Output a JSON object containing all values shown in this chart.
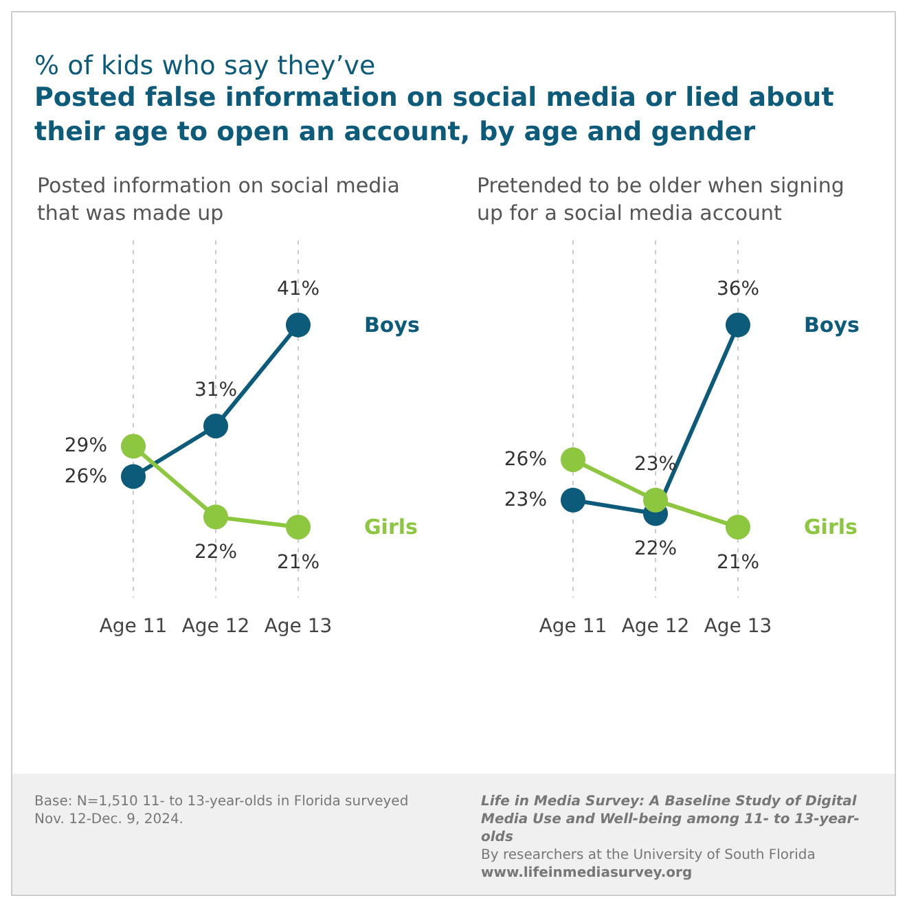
{
  "chart_data": [
    {
      "type": "line",
      "title": "Posted information on social media that was made up",
      "categories": [
        "Age 11",
        "Age 12",
        "Age 13"
      ],
      "grid": "x",
      "marker": "circle",
      "legend": false,
      "annotations": [
        "% of kids who say they’ve",
        "Posted false information on social media or lied about their age to open an account, by age and gender",
        "Base: N=1,510 11- to 13-year-olds in Florida surveyed Nov. 12-Dec. 9, 2024."
      ],
      "series": [
        {
          "name": "Boys",
          "color": "#0d5b7a",
          "values": [
            26,
            31,
            41
          ],
          "value_labels": [
            "26%",
            "31%",
            "41%"
          ]
        },
        {
          "name": "Girls",
          "color": "#8dc63f",
          "values": [
            29,
            22,
            21
          ],
          "value_labels": [
            "29%",
            "22%",
            "21%"
          ]
        }
      ]
    },
    {
      "type": "line",
      "title": "Pretended to be older when signing up for a social media account",
      "categories": [
        "Age 11",
        "Age 12",
        "Age 13"
      ],
      "grid": "x",
      "marker": "circle",
      "legend": false,
      "annotations": [
        "Life in Media Survey: A Baseline Study of Digital Media Use and Well-being among 11- to 13-year-olds",
        "By researchers at the University of South Florida",
        "www.lifeinmediasurvey.org"
      ],
      "series": [
        {
          "name": "Boys",
          "color": "#0d5b7a",
          "values": [
            23,
            22,
            36
          ],
          "value_labels": [
            "23%",
            "22%",
            "36%"
          ]
        },
        {
          "name": "Girls",
          "color": "#8dc63f",
          "values": [
            26,
            23,
            21
          ],
          "value_labels": [
            "26%",
            "23%",
            "21%"
          ]
        }
      ]
    }
  ]
}
